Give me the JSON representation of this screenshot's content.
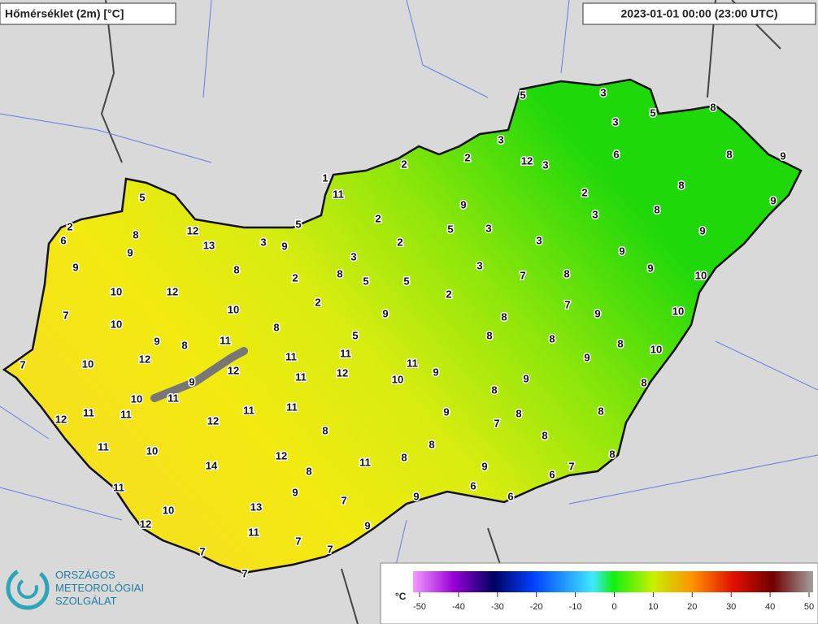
{
  "header": {
    "title": "Hőmérséklet (2m) [°C]",
    "timestamp": "2023-01-01 00:00 (23:00 UTC)"
  },
  "logo": {
    "lines": [
      "ORSZÁGOS",
      "METEOROLÓGIAI",
      "SZOLGÁLAT"
    ]
  },
  "legend": {
    "unit": "°C",
    "ticks": [
      -50,
      -40,
      -30,
      -20,
      -10,
      0,
      10,
      20,
      30,
      40,
      50
    ]
  },
  "stations": [
    5,
    3,
    5,
    3,
    8,
    3,
    6,
    8,
    9,
    2,
    2,
    12,
    3,
    1,
    11,
    5,
    2,
    8,
    9,
    9,
    2,
    5,
    3,
    8,
    2,
    6,
    12,
    8,
    5,
    3,
    3,
    9,
    2,
    13,
    9,
    3,
    9,
    9,
    3,
    9,
    8,
    8,
    3,
    2,
    5,
    5,
    7,
    8,
    9,
    10,
    10,
    12,
    2,
    2,
    7,
    10,
    7,
    9,
    8,
    9,
    10,
    10,
    8,
    5,
    8,
    9,
    8,
    11,
    8,
    8,
    12,
    11,
    11,
    10,
    7,
    10,
    9,
    11,
    12,
    11,
    12,
    9,
    9,
    10,
    9,
    8,
    10,
    11,
    8,
    11,
    11,
    11,
    11,
    9,
    8,
    8,
    12,
    12,
    7,
    8,
    8,
    11,
    10,
    8,
    8,
    8,
    12,
    11,
    14,
    9,
    7,
    6,
    8,
    11,
    9,
    6,
    7,
    9,
    6,
    13,
    10,
    12,
    9,
    11,
    7,
    7,
    7,
    7
  ]
}
